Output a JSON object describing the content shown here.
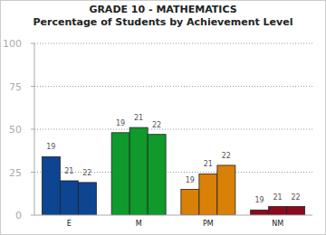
{
  "chart_data": {
    "type": "bar",
    "title": "GRADE 10 - MATHEMATICS",
    "subtitle": "Percentage of Students by Achievement Level",
    "categories": [
      "E",
      "M",
      "PM",
      "NM"
    ],
    "series": [
      {
        "name": "19",
        "values": [
          34,
          48,
          15,
          3
        ]
      },
      {
        "name": "21",
        "values": [
          20,
          51,
          24,
          5
        ]
      },
      {
        "name": "22",
        "values": [
          19,
          47,
          29,
          5
        ]
      }
    ],
    "colors": [
      "#0d4590",
      "#0f9a2b",
      "#d98008",
      "#8b0a1e"
    ],
    "ylim": [
      0,
      100
    ],
    "yticks": [
      0,
      25,
      50,
      75,
      100
    ],
    "grid": true
  }
}
